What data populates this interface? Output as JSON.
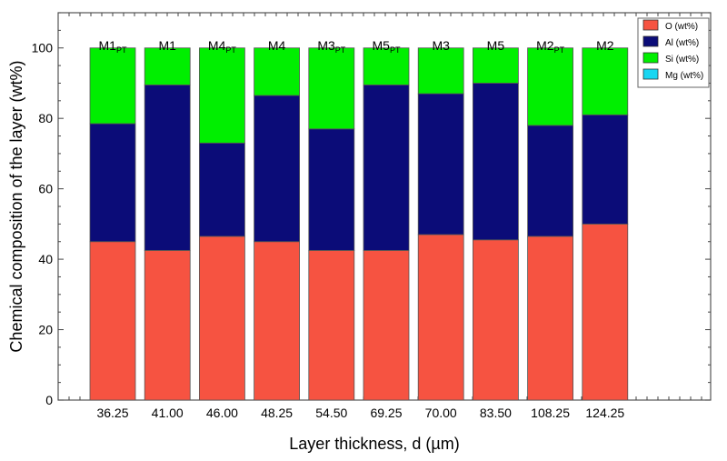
{
  "chart_data": {
    "type": "bar",
    "stacked": true,
    "title": "",
    "xlabel": "Layer thickness, d (µm)",
    "ylabel": "Chemical composition of the layer (wt%)",
    "ylim": [
      0,
      110
    ],
    "yticks": [
      0,
      20,
      40,
      60,
      80,
      100
    ],
    "categories": [
      "36.25",
      "41.00",
      "46.00",
      "48.25",
      "54.50",
      "69.25",
      "70.00",
      "83.50",
      "108.25",
      "124.25"
    ],
    "bar_labels": [
      {
        "main": "M1",
        "sub": "PT"
      },
      {
        "main": "M1",
        "sub": ""
      },
      {
        "main": "M4",
        "sub": "PT"
      },
      {
        "main": "M4",
        "sub": ""
      },
      {
        "main": "M3",
        "sub": "PT"
      },
      {
        "main": "M5",
        "sub": "PT"
      },
      {
        "main": "M3",
        "sub": ""
      },
      {
        "main": "M5",
        "sub": ""
      },
      {
        "main": "M2",
        "sub": "PT"
      },
      {
        "main": "M2",
        "sub": ""
      }
    ],
    "series": [
      {
        "name": "O (wt%)",
        "color": "#f65341",
        "values": [
          45,
          42.5,
          46.5,
          45,
          42.5,
          42.5,
          47,
          45.5,
          46.5,
          50
        ]
      },
      {
        "name": "Al (wt%)",
        "color": "#0b0c78",
        "values": [
          33.5,
          47,
          26.5,
          41.5,
          34.5,
          47,
          40,
          44.5,
          31.5,
          31
        ]
      },
      {
        "name": "Si (wt%)",
        "color": "#00ef00",
        "values": [
          21.5,
          10.5,
          27,
          13.5,
          23,
          10.5,
          13,
          10,
          22,
          19
        ]
      },
      {
        "name": "Mg (wt%)",
        "color": "#18d6f2",
        "values": [
          0,
          0,
          0,
          0,
          0,
          0,
          0,
          0,
          0,
          0
        ]
      }
    ],
    "legend": "top-right",
    "grid": false
  }
}
